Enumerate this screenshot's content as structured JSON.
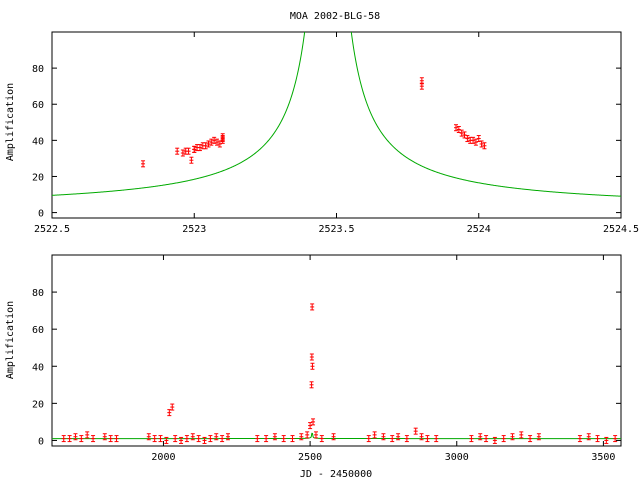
{
  "chart_data": [
    {
      "type": "scatter",
      "title": "MOA 2002-BLG-58",
      "xlabel": "",
      "ylabel": "Amplification",
      "xlim": [
        2522.5,
        2524.5
      ],
      "ylim": [
        -3,
        100
      ],
      "xticks": [
        "2522.5",
        "2523",
        "2523.5",
        "2524",
        "2524.5"
      ],
      "xtick_values": [
        2522.5,
        2523,
        2523.5,
        2524,
        2524.5
      ],
      "yticks": [
        "0",
        "20",
        "40",
        "60",
        "80"
      ],
      "ytick_values": [
        0,
        20,
        40,
        60,
        80
      ],
      "model": {
        "t0": 2523.47,
        "baseline": 1.2,
        "peak_scale": 1.8,
        "color": "#00aa00"
      },
      "data_color": "#ff0000",
      "series": [
        {
          "x": [
            2522.82,
            2522.94,
            2522.96,
            2522.97,
            2522.98,
            2522.99,
            2523.0,
            2523.0,
            2523.01,
            2523.02,
            2523.03,
            2523.04,
            2523.05,
            2523.06,
            2523.07,
            2523.08,
            2523.09,
            2523.1,
            2523.1,
            2523.1,
            2523.8,
            2523.8,
            2523.92,
            2523.93,
            2523.94,
            2523.95,
            2523.96,
            2523.97,
            2523.98,
            2523.99,
            2524.0,
            2524.01,
            2524.02
          ],
          "y": [
            27,
            34,
            33,
            34,
            34,
            29,
            35,
            35,
            36,
            36,
            37,
            37,
            38,
            39,
            40,
            39,
            38,
            40,
            41,
            42,
            73,
            70,
            47,
            46,
            44,
            43,
            41,
            40,
            40,
            39,
            41,
            38,
            37
          ]
        }
      ]
    },
    {
      "type": "scatter",
      "title": "",
      "xlabel": "JD - 2450000",
      "ylabel": "Amplification",
      "xlim": [
        1620,
        3560
      ],
      "ylim": [
        -3,
        100
      ],
      "xticks": [
        "2000",
        "2500",
        "3000",
        "3500"
      ],
      "xtick_values": [
        2000,
        2500,
        3000,
        3500
      ],
      "yticks": [
        "0",
        "20",
        "40",
        "60",
        "80"
      ],
      "ytick_values": [
        0,
        20,
        40,
        60,
        80
      ],
      "model": {
        "t0": 2507,
        "baseline": 1.0,
        "color": "#00aa00"
      },
      "data_color": "#ff0000",
      "series": [
        {
          "x": [
            1660,
            1680,
            1700,
            1720,
            1740,
            1760,
            1800,
            1820,
            1840,
            1950,
            1970,
            1990,
            2010,
            2020,
            2030,
            2040,
            2060,
            2080,
            2100,
            2120,
            2140,
            2160,
            2180,
            2200,
            2220,
            2320,
            2350,
            2380,
            2410,
            2440,
            2470,
            2490,
            2500,
            2505,
            2506,
            2507,
            2508,
            2510,
            2520,
            2540,
            2580,
            2700,
            2720,
            2750,
            2780,
            2800,
            2830,
            2860,
            2880,
            2900,
            2930,
            3050,
            3080,
            3100,
            3130,
            3160,
            3190,
            3220,
            3250,
            3280,
            3420,
            3450,
            3480,
            3510,
            3540
          ],
          "y": [
            1,
            1,
            2,
            1,
            3,
            1,
            2,
            1,
            1,
            2,
            1,
            1,
            0,
            15,
            18,
            1,
            0,
            1,
            2,
            1,
            0,
            1,
            2,
            1,
            2,
            1,
            1,
            2,
            1,
            1,
            2,
            3,
            8,
            30,
            45,
            72,
            40,
            10,
            3,
            1,
            2,
            1,
            3,
            2,
            1,
            2,
            1,
            5,
            2,
            1,
            1,
            1,
            2,
            1,
            0,
            1,
            2,
            3,
            1,
            2,
            1,
            2,
            1,
            0,
            1
          ]
        }
      ]
    }
  ]
}
